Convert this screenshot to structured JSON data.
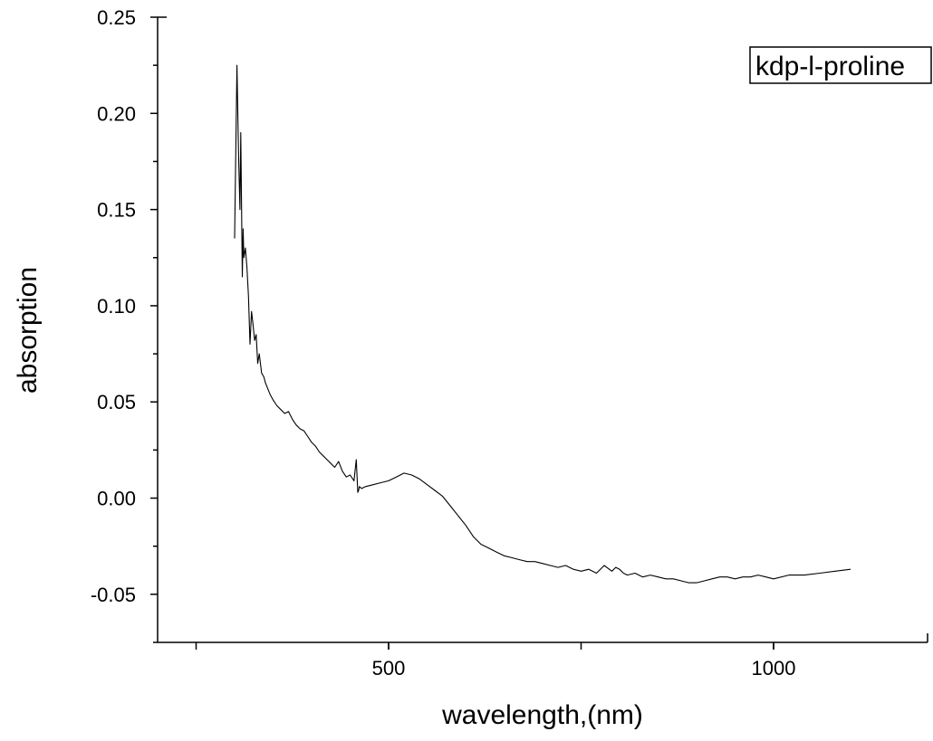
{
  "chart_data": {
    "type": "line",
    "title": "",
    "xlabel": "wavelength,(nm)",
    "ylabel": "absorption",
    "xlim": [
      200,
      1200
    ],
    "ylim": [
      -0.075,
      0.25
    ],
    "xticks": [
      500,
      1000
    ],
    "xtick_labels": [
      "500",
      "1000"
    ],
    "yticks": [
      -0.05,
      0.0,
      0.05,
      0.1,
      0.15,
      0.2,
      0.25
    ],
    "ytick_labels": [
      "-0.05",
      "0.00",
      "0.05",
      "0.10",
      "0.15",
      "0.20",
      "0.25"
    ],
    "grid": false,
    "legend_position": "top-right",
    "series": [
      {
        "name": "kdp-l-proline",
        "color": "#000000",
        "x": [
          300,
          303,
          305,
          307,
          308,
          310,
          311,
          312,
          314,
          316,
          318,
          320,
          322,
          324,
          326,
          328,
          330,
          332,
          335,
          338,
          340,
          343,
          346,
          350,
          355,
          360,
          365,
          370,
          375,
          380,
          385,
          390,
          395,
          400,
          405,
          410,
          415,
          420,
          425,
          430,
          435,
          440,
          445,
          450,
          455,
          458,
          460,
          461,
          462,
          465,
          470,
          480,
          490,
          500,
          510,
          520,
          530,
          540,
          550,
          560,
          570,
          580,
          590,
          600,
          610,
          620,
          630,
          640,
          650,
          660,
          670,
          680,
          690,
          700,
          710,
          720,
          730,
          740,
          750,
          760,
          770,
          780,
          790,
          795,
          800,
          805,
          810,
          820,
          830,
          840,
          850,
          860,
          870,
          880,
          890,
          900,
          910,
          920,
          930,
          940,
          950,
          960,
          970,
          980,
          990,
          1000,
          1020,
          1040,
          1060,
          1080,
          1100
        ],
        "y": [
          0.135,
          0.225,
          0.18,
          0.15,
          0.19,
          0.115,
          0.14,
          0.125,
          0.13,
          0.12,
          0.105,
          0.08,
          0.097,
          0.09,
          0.082,
          0.085,
          0.07,
          0.075,
          0.065,
          0.063,
          0.06,
          0.057,
          0.054,
          0.051,
          0.048,
          0.046,
          0.044,
          0.045,
          0.041,
          0.038,
          0.036,
          0.035,
          0.032,
          0.029,
          0.027,
          0.024,
          0.022,
          0.02,
          0.018,
          0.016,
          0.019,
          0.014,
          0.011,
          0.012,
          0.009,
          0.02,
          0.003,
          0.004,
          0.006,
          0.005,
          0.006,
          0.007,
          0.008,
          0.009,
          0.011,
          0.013,
          0.012,
          0.01,
          0.007,
          0.004,
          0.001,
          -0.004,
          -0.009,
          -0.014,
          -0.02,
          -0.024,
          -0.026,
          -0.028,
          -0.03,
          -0.031,
          -0.032,
          -0.033,
          -0.033,
          -0.034,
          -0.035,
          -0.036,
          -0.035,
          -0.037,
          -0.038,
          -0.037,
          -0.039,
          -0.035,
          -0.038,
          -0.036,
          -0.037,
          -0.039,
          -0.04,
          -0.039,
          -0.041,
          -0.04,
          -0.041,
          -0.042,
          -0.042,
          -0.043,
          -0.044,
          -0.044,
          -0.043,
          -0.042,
          -0.041,
          -0.041,
          -0.042,
          -0.041,
          -0.041,
          -0.04,
          -0.041,
          -0.042,
          -0.04,
          -0.04,
          -0.039,
          -0.038,
          -0.037
        ]
      }
    ]
  }
}
